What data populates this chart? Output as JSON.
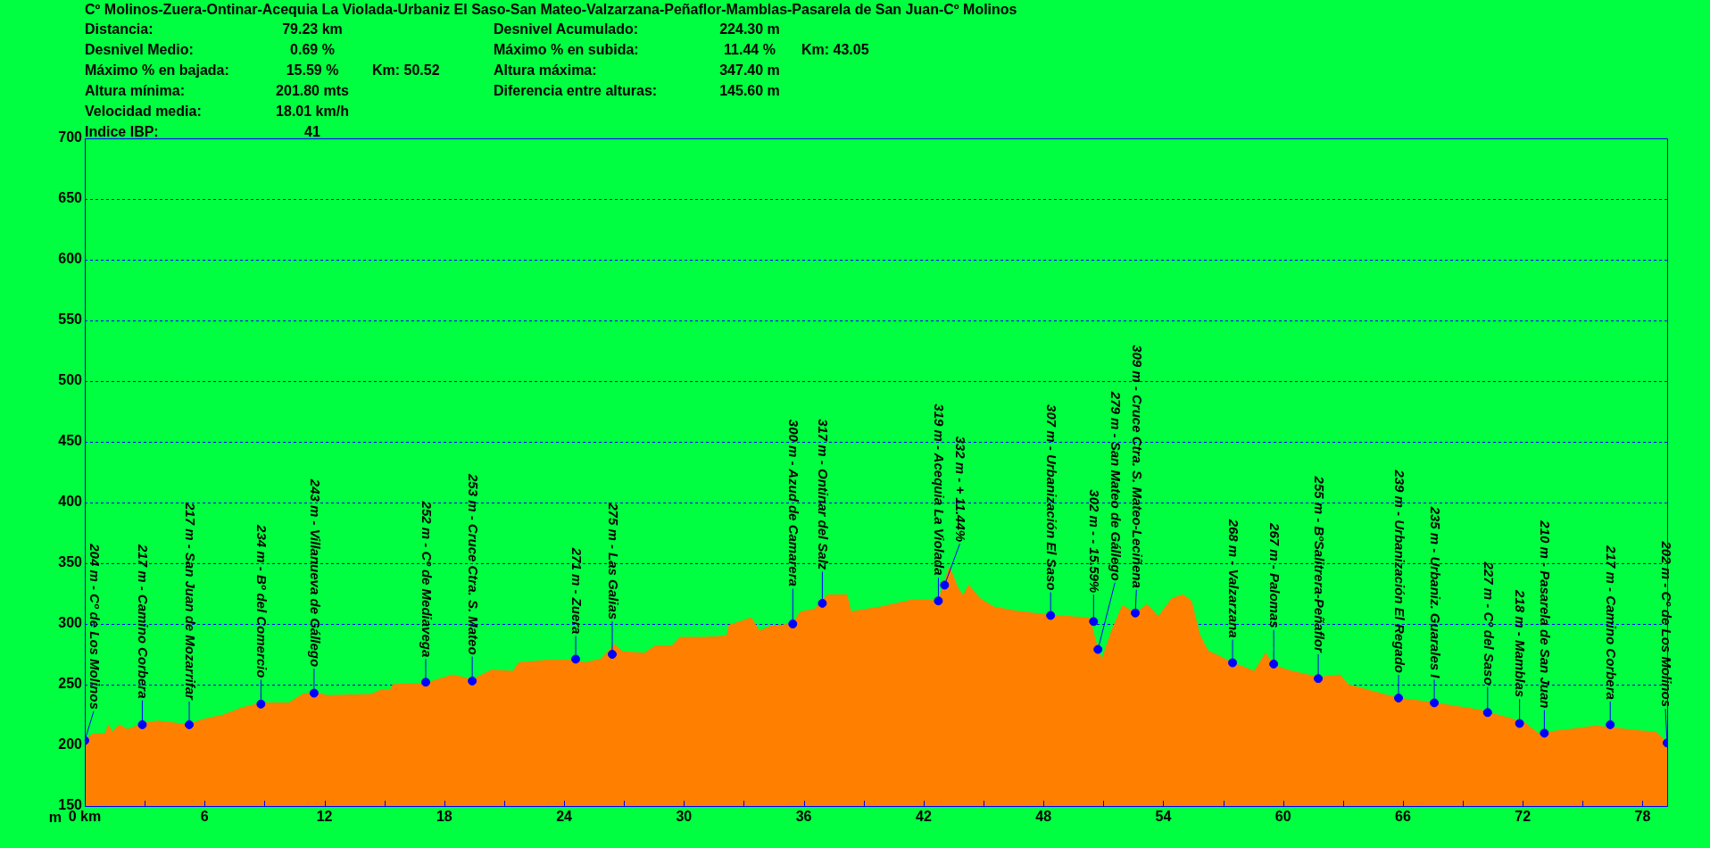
{
  "chart_data": {
    "type": "area",
    "title": "Cº Molinos-Zuera-Ontinar-Acequia La Violada-Urbaniz El Saso-San Mateo-Valzarzana-Peñaflor-Mamblas-Pasarela de San Juan-Cº Molinos",
    "ylabel": "m",
    "xlim": [
      0,
      79.23
    ],
    "ylim": [
      150,
      700
    ],
    "xticks": [
      {
        "value": 0,
        "label": "0 km"
      },
      {
        "value": 3,
        "label": null
      },
      6,
      {
        "value": 9,
        "label": null
      },
      12,
      {
        "value": 15,
        "label": null
      },
      18,
      {
        "value": 21,
        "label": null
      },
      24,
      {
        "value": 27,
        "label": null
      },
      30,
      {
        "value": 33,
        "label": null
      },
      36,
      {
        "value": 39,
        "label": null
      },
      42,
      {
        "value": 45,
        "label": null
      },
      48,
      {
        "value": 51,
        "label": null
      },
      54,
      {
        "value": 57,
        "label": null
      },
      60,
      {
        "value": 63,
        "label": null
      },
      66,
      {
        "value": 69,
        "label": null
      },
      72,
      {
        "value": 75,
        "label": null
      },
      78
    ],
    "yticks": [
      150,
      200,
      250,
      300,
      350,
      400,
      450,
      500,
      550,
      600,
      650,
      700
    ],
    "grid": "y",
    "series": [
      {
        "color": "#ff8000",
        "marker": "none",
        "x": [
          0,
          0.36,
          1.04,
          1.18,
          1.37,
          1.73,
          2.14,
          2.88,
          3.64,
          5.23,
          5.84,
          6.93,
          7.89,
          8.85,
          10.22,
          10.9,
          11.48,
          12.14,
          14.33,
          14.88,
          15.29,
          15.42,
          17.07,
          17.62,
          18.44,
          19.4,
          20.36,
          21.45,
          21.73,
          23.1,
          24.6,
          25.01,
          25.84,
          26.52,
          26.93,
          28.03,
          28.58,
          29.4,
          29.81,
          31.04,
          32.14,
          32.27,
          33.37,
          33.78,
          34.33,
          35.42,
          35.84,
          36.52,
          37.21,
          38.16,
          38.36,
          39.85,
          41.5,
          42.74,
          43.29,
          43.71,
          43.98,
          44.26,
          44.81,
          45.5,
          46.46,
          48.39,
          50.31,
          50.59,
          50.92,
          51.41,
          51.96,
          52.6,
          53.2,
          53.75,
          54.44,
          54.99,
          55.4,
          55.82,
          56.23,
          57.47,
          58.57,
          59.12,
          59.53,
          60.22,
          61.76,
          62.84,
          63.25,
          65.73,
          67.57,
          69.86,
          72.06,
          72.75,
          74.81,
          75.64,
          76.74,
          77.84,
          78.66,
          79.23
        ],
        "values": [
          204,
          209,
          210,
          217,
          211,
          217,
          213,
          218,
          220,
          217,
          221,
          225,
          231,
          235,
          235,
          242,
          244,
          241,
          242,
          246,
          245,
          250,
          251,
          254,
          258,
          254,
          262,
          261,
          268,
          270,
          270,
          268,
          271,
          283,
          277,
          276,
          282,
          282,
          289,
          289,
          290,
          299,
          305,
          294,
          298,
          300,
          310,
          312,
          324,
          324,
          310,
          314,
          320,
          319,
          347,
          330,
          323,
          332,
          321,
          314,
          311,
          307,
          305,
          287,
          270,
          294,
          315,
          309,
          316,
          306,
          321,
          324,
          319,
          291,
          278,
          268,
          261,
          276,
          266,
          262,
          256,
          258,
          250,
          239,
          235,
          229,
          219,
          210,
          214,
          216,
          214,
          212,
          211,
          202
        ]
      },
      {
        "type": "scatter",
        "color": "#0000ff",
        "marker": "circle",
        "x": [
          0,
          2.88,
          5.23,
          8.82,
          11.48,
          17.07,
          19.4,
          24.58,
          26.41,
          35.45,
          36.93,
          42.74,
          43.05,
          48.36,
          50.51,
          50.73,
          52.6,
          57.47,
          59.53,
          61.76,
          65.78,
          67.57,
          70.24,
          71.84,
          73.08,
          76.38,
          79.23
        ],
        "values": [
          204,
          217,
          217,
          234,
          243,
          252,
          253,
          271,
          275,
          300,
          317,
          319,
          332,
          307,
          302,
          279,
          309,
          268,
          267,
          255,
          239,
          235,
          227,
          218,
          210,
          217,
          202
        ]
      }
    ],
    "annotations": [
      "Distancia:\t79.23 km",
      "Desnivel Acumulado:\t224.30 m",
      "Desnivel Medio:\t0.69 %",
      "Máximo % en subida:\t11.44 %\tKm: 43.05",
      "Máximo % en bajada:\t15.59 %\tKm: 50.52",
      "Altura máxima:\t347.40 m",
      "Altura mínima:\t201.80 mts",
      "Diferencia entre alturas:\t145.60 m",
      "Velocidad media:\t18.01 km/h",
      "Indice IBP:\t41",
      {
        "text": "204 m - Cº de Los Molinos",
        "x": 0,
        "y": 204
      },
      {
        "text": "217 m - Camino Corbera",
        "x": 2.88,
        "y": 217
      },
      {
        "text": "217 m - San Juan de Mozarrifar",
        "x": 5.23,
        "y": 217
      },
      {
        "text": "234 m - Bº del Comercio",
        "x": 8.82,
        "y": 234
      },
      {
        "text": "243 m - Villanueva de Gállego",
        "x": 11.48,
        "y": 243
      },
      {
        "text": "252 m - Cº de Mediavega",
        "x": 17.07,
        "y": 252
      },
      {
        "text": "253 m - Cruce Ctra. S. Mateo",
        "x": 19.4,
        "y": 253
      },
      {
        "text": "271 m - Zuera",
        "x": 24.58,
        "y": 271
      },
      {
        "text": "275 m - Las Galias",
        "x": 26.41,
        "y": 275
      },
      {
        "text": "300 m - Azud de Camarera",
        "x": 35.45,
        "y": 300
      },
      {
        "text": "317 m - Ontinar del Salz",
        "x": 36.93,
        "y": 317
      },
      {
        "text": "319 m - Acequia La Violada",
        "x": 42.74,
        "y": 319
      },
      {
        "text": "332 m - + 11.44%",
        "x": 43.05,
        "y": 332
      },
      {
        "text": "307 m - Urbanización El Saso",
        "x": 48.36,
        "y": 307
      },
      {
        "text": "302 m - - 15.59%",
        "x": 50.51,
        "y": 302
      },
      {
        "text": "279 m - San Mateo de Gállego",
        "x": 50.73,
        "y": 279
      },
      {
        "text": "309 m - Cruce Ctra. S. Mateo-Leciñena",
        "x": 52.6,
        "y": 309
      },
      {
        "text": "268 m - Valzarzana",
        "x": 57.47,
        "y": 268
      },
      {
        "text": "267 m - Palomas",
        "x": 59.53,
        "y": 267
      },
      {
        "text": "255 m - BºSalitrera-Peñaflor",
        "x": 61.76,
        "y": 255
      },
      {
        "text": "239 m - Urbanización El Regado",
        "x": 65.78,
        "y": 239
      },
      {
        "text": "235 m - Urbaniz. Guarales I",
        "x": 67.57,
        "y": 235
      },
      {
        "text": "227 m - Cº del Saso",
        "x": 70.24,
        "y": 227
      },
      {
        "text": "218 m - Mamblas",
        "x": 71.84,
        "y": 218
      },
      {
        "text": "210 m - Pasarela de San Juan",
        "x": 73.08,
        "y": 210
      },
      {
        "text": "217 m - Camino Corbera",
        "x": 76.38,
        "y": 217
      },
      {
        "text": "202 m - Cº de Los Molinos",
        "x": 79.23,
        "y": 202
      }
    ]
  }
}
